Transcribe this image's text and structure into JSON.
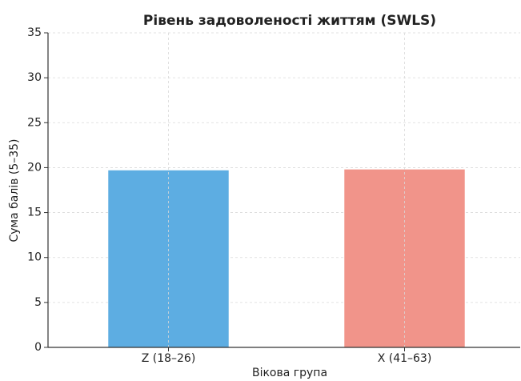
{
  "chart_data": {
    "type": "bar",
    "title": "Рівень задоволеності життям (SWLS)",
    "x_label": "Вікова група",
    "y_label": "Сума балів (5–35)",
    "categories": [
      "Z (18–26)",
      "X (41–63)"
    ],
    "values": [
      19.7,
      19.8
    ],
    "colors": [
      "#5dade2",
      "#f1948a"
    ],
    "ylim": [
      0,
      35
    ],
    "yticks": [
      0,
      5,
      10,
      15,
      20,
      25,
      30,
      35
    ],
    "grid": true
  }
}
